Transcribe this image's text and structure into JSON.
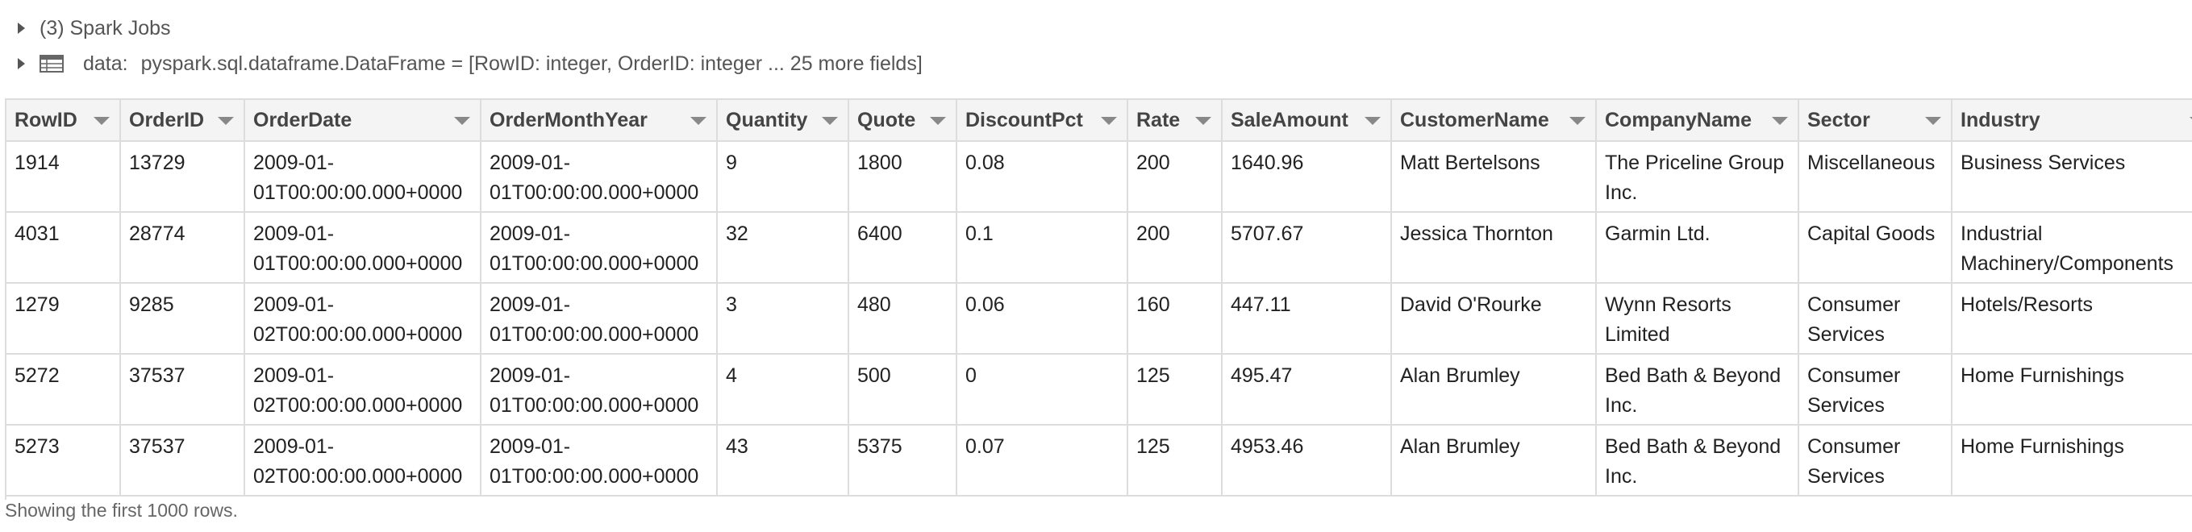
{
  "output": {
    "jobs_label": "(3) Spark Jobs",
    "data_label": "data:",
    "data_schema": "pyspark.sql.dataframe.DataFrame = [RowID: integer, OrderID: integer ... 25 more fields]"
  },
  "table": {
    "columns": [
      "RowID",
      "OrderID",
      "OrderDate",
      "OrderMonthYear",
      "Quantity",
      "Quote",
      "DiscountPct",
      "Rate",
      "SaleAmount",
      "CustomerName",
      "CompanyName",
      "Sector",
      "Industry"
    ],
    "rows": [
      [
        "1914",
        "13729",
        "2009-01-01T00:00:00.000+0000",
        "2009-01-01T00:00:00.000+0000",
        "9",
        "1800",
        "0.08",
        "200",
        "1640.96",
        "Matt Bertelsons",
        "The Priceline Group Inc.",
        "Miscellaneous",
        "Business Services"
      ],
      [
        "4031",
        "28774",
        "2009-01-01T00:00:00.000+0000",
        "2009-01-01T00:00:00.000+0000",
        "32",
        "6400",
        "0.1",
        "200",
        "5707.67",
        "Jessica Thornton",
        "Garmin Ltd.",
        "Capital Goods",
        "Industrial Machinery/Components"
      ],
      [
        "1279",
        "9285",
        "2009-01-02T00:00:00.000+0000",
        "2009-01-01T00:00:00.000+0000",
        "3",
        "480",
        "0.06",
        "160",
        "447.11",
        "David O'Rourke",
        "Wynn Resorts Limited",
        "Consumer Services",
        "Hotels/Resorts"
      ],
      [
        "5272",
        "37537",
        "2009-01-02T00:00:00.000+0000",
        "2009-01-01T00:00:00.000+0000",
        "4",
        "500",
        "0",
        "125",
        "495.47",
        "Alan Brumley",
        "Bed Bath & Beyond Inc.",
        "Consumer Services",
        "Home Furnishings"
      ],
      [
        "5273",
        "37537",
        "2009-01-02T00:00:00.000+0000",
        "2009-01-01T00:00:00.000+0000",
        "43",
        "5375",
        "0.07",
        "125",
        "4953.46",
        "Alan Brumley",
        "Bed Bath & Beyond Inc.",
        "Consumer Services",
        "Home Furnishings"
      ]
    ]
  },
  "footer": {
    "note": "Showing the first 1000 rows."
  }
}
